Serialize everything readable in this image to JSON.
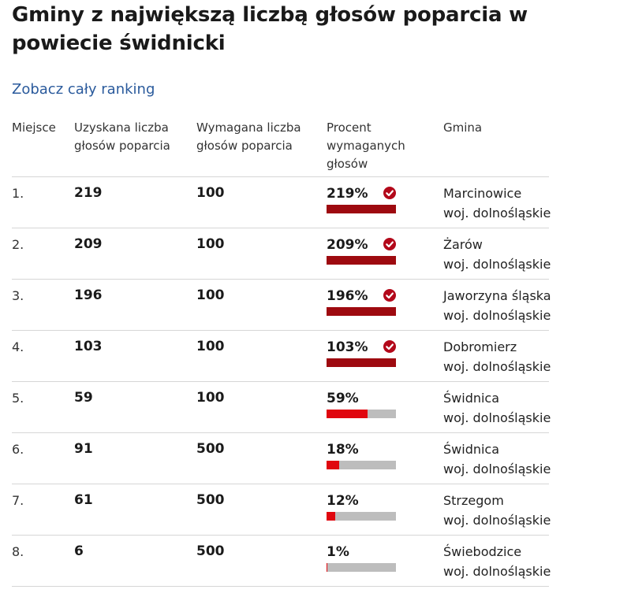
{
  "title": "Gminy z największą liczbą głosów poparcia w powiecie świdnicki",
  "ranking_link": "Zobacz cały ranking",
  "columns": {
    "place": "Miejsce",
    "received": "Uzyskana liczba głosów poparcia",
    "required": "Wymagana liczba głosów poparcia",
    "percent": "Procent wymaganych głosów",
    "gmina": "Gmina"
  },
  "colors": {
    "full_bar": "#9e0a10",
    "partial_bar": "#e0070f",
    "bar_track": "#bdbdbd",
    "link": "#2a5a9c"
  },
  "rows": [
    {
      "place": "1.",
      "received": "219",
      "required": "100",
      "percent": "219%",
      "fill": 1.0,
      "check": true,
      "gmina": "Marcinowice",
      "woj": "woj. dolnośląskie"
    },
    {
      "place": "2.",
      "received": "209",
      "required": "100",
      "percent": "209%",
      "fill": 1.0,
      "check": true,
      "gmina": "Żarów",
      "woj": "woj. dolnośląskie"
    },
    {
      "place": "3.",
      "received": "196",
      "required": "100",
      "percent": "196%",
      "fill": 1.0,
      "check": true,
      "gmina": "Jaworzyna śląska",
      "woj": "woj. dolnośląskie"
    },
    {
      "place": "4.",
      "received": "103",
      "required": "100",
      "percent": "103%",
      "fill": 1.0,
      "check": true,
      "gmina": "Dobromierz",
      "woj": "woj. dolnośląskie"
    },
    {
      "place": "5.",
      "received": "59",
      "required": "100",
      "percent": "59%",
      "fill": 0.59,
      "check": false,
      "gmina": "Świdnica",
      "woj": "woj. dolnośląskie"
    },
    {
      "place": "6.",
      "received": "91",
      "required": "500",
      "percent": "18%",
      "fill": 0.18,
      "check": false,
      "gmina": "Świdnica",
      "woj": "woj. dolnośląskie"
    },
    {
      "place": "7.",
      "received": "61",
      "required": "500",
      "percent": "12%",
      "fill": 0.12,
      "check": false,
      "gmina": "Strzegom",
      "woj": "woj. dolnośląskie"
    },
    {
      "place": "8.",
      "received": "6",
      "required": "500",
      "percent": "1%",
      "fill": 0.01,
      "check": false,
      "gmina": "Świebodzice",
      "woj": "woj. dolnośląskie"
    }
  ]
}
